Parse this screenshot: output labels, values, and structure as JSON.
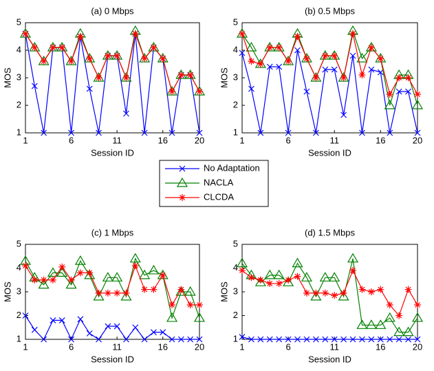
{
  "legend": [
    "No Adaptation",
    "NACLA",
    "CLCDA"
  ],
  "chart_data": [
    {
      "type": "line",
      "title": "(a) 0 Mbps",
      "xlabel": "Session ID",
      "ylabel": "MOS",
      "x": [
        1,
        2,
        3,
        4,
        5,
        6,
        7,
        8,
        9,
        10,
        11,
        12,
        13,
        14,
        15,
        16,
        17,
        18,
        19,
        20
      ],
      "xlim": [
        1,
        20
      ],
      "ylim": [
        1,
        5
      ],
      "xticks": [
        1,
        6,
        11,
        16,
        20
      ],
      "yticks": [
        1,
        2,
        3,
        4,
        5
      ],
      "series": [
        {
          "color": "#0000ff",
          "marker": "x",
          "values": [
            4.6,
            2.7,
            1.0,
            4.1,
            4.1,
            1.0,
            4.5,
            2.6,
            1.0,
            3.8,
            3.8,
            1.7,
            4.6,
            1.0,
            4.1,
            3.7,
            1.0,
            3.1,
            3.1,
            1.0
          ]
        },
        {
          "color": "#008000",
          "marker": "triangle",
          "values": [
            4.6,
            4.1,
            3.6,
            4.1,
            4.1,
            3.6,
            4.6,
            3.7,
            3.0,
            3.8,
            3.8,
            3.0,
            4.7,
            3.7,
            4.1,
            3.7,
            2.5,
            3.1,
            3.1,
            2.5
          ]
        },
        {
          "color": "#ff0000",
          "marker": "asterisk",
          "values": [
            4.6,
            4.1,
            3.6,
            4.1,
            4.1,
            3.6,
            4.5,
            3.7,
            3.0,
            3.8,
            3.8,
            3.0,
            4.6,
            3.7,
            4.1,
            3.7,
            2.5,
            3.1,
            3.1,
            2.5
          ]
        }
      ]
    },
    {
      "type": "line",
      "title": "(b) 0.5 Mbps",
      "xlabel": "Session ID",
      "ylabel": "MOS",
      "x": [
        1,
        2,
        3,
        4,
        5,
        6,
        7,
        8,
        9,
        10,
        11,
        12,
        13,
        14,
        15,
        16,
        17,
        18,
        19,
        20
      ],
      "xlim": [
        1,
        20
      ],
      "ylim": [
        1,
        5
      ],
      "xticks": [
        1,
        6,
        11,
        16,
        20
      ],
      "yticks": [
        1,
        2,
        3,
        4,
        5
      ],
      "series": [
        {
          "color": "#0000ff",
          "marker": "x",
          "values": [
            3.9,
            2.6,
            1.0,
            3.4,
            3.4,
            1.0,
            4.0,
            2.5,
            1.0,
            3.3,
            3.3,
            1.65,
            3.8,
            1.0,
            3.3,
            3.2,
            1.0,
            2.5,
            2.5,
            1.0
          ]
        },
        {
          "color": "#008000",
          "marker": "triangle",
          "values": [
            4.6,
            4.1,
            3.5,
            4.1,
            4.1,
            3.6,
            4.6,
            3.7,
            3.0,
            3.8,
            3.8,
            3.0,
            4.7,
            3.7,
            4.1,
            3.7,
            2.0,
            3.1,
            3.1,
            2.0
          ]
        },
        {
          "color": "#ff0000",
          "marker": "asterisk",
          "values": [
            4.6,
            3.6,
            3.5,
            4.1,
            4.1,
            3.6,
            4.5,
            3.7,
            3.0,
            3.8,
            3.8,
            3.0,
            4.6,
            3.1,
            4.1,
            3.7,
            2.4,
            3.0,
            3.0,
            2.4
          ]
        }
      ]
    },
    {
      "type": "line",
      "title": "(c) 1 Mbps",
      "xlabel": "Session ID",
      "ylabel": "MOS",
      "x": [
        1,
        2,
        3,
        4,
        5,
        6,
        7,
        8,
        9,
        10,
        11,
        12,
        13,
        14,
        15,
        16,
        17,
        18,
        19,
        20
      ],
      "xlim": [
        1,
        20
      ],
      "ylim": [
        1,
        5
      ],
      "xticks": [
        1,
        6,
        11,
        16,
        20
      ],
      "yticks": [
        1,
        2,
        3,
        4,
        5
      ],
      "series": [
        {
          "color": "#0000ff",
          "marker": "x",
          "values": [
            2.0,
            1.4,
            1.0,
            1.8,
            1.8,
            1.0,
            1.85,
            1.25,
            1.0,
            1.55,
            1.55,
            1.0,
            1.5,
            1.0,
            1.3,
            1.3,
            1.0,
            1.0,
            1.0,
            1.0
          ]
        },
        {
          "color": "#008000",
          "marker": "triangle",
          "values": [
            4.3,
            3.6,
            3.3,
            3.8,
            3.8,
            3.3,
            4.3,
            3.7,
            2.8,
            3.6,
            3.6,
            2.8,
            4.4,
            3.7,
            3.9,
            3.7,
            1.9,
            3.0,
            3.0,
            1.9
          ]
        },
        {
          "color": "#ff0000",
          "marker": "asterisk",
          "values": [
            4.1,
            3.5,
            3.5,
            3.5,
            4.05,
            3.5,
            3.8,
            3.8,
            2.95,
            2.95,
            2.95,
            2.95,
            4.1,
            3.1,
            3.1,
            3.7,
            2.45,
            3.1,
            2.45,
            2.45
          ]
        }
      ]
    },
    {
      "type": "line",
      "title": "(d) 1.5 Mbps",
      "xlabel": "Session ID",
      "ylabel": "MOS",
      "x": [
        1,
        2,
        3,
        4,
        5,
        6,
        7,
        8,
        9,
        10,
        11,
        12,
        13,
        14,
        15,
        16,
        17,
        18,
        19,
        20
      ],
      "xlim": [
        1,
        20
      ],
      "ylim": [
        1,
        5
      ],
      "xticks": [
        1,
        6,
        11,
        16,
        20
      ],
      "yticks": [
        1,
        2,
        3,
        4,
        5
      ],
      "series": [
        {
          "color": "#0000ff",
          "marker": "x",
          "values": [
            1.1,
            1.0,
            1.0,
            1.0,
            1.0,
            1.0,
            1.0,
            1.0,
            1.0,
            1.0,
            1.0,
            1.0,
            1.0,
            1.0,
            1.0,
            1.0,
            1.0,
            1.0,
            1.0,
            1.0
          ]
        },
        {
          "color": "#008000",
          "marker": "triangle",
          "values": [
            4.2,
            3.7,
            3.4,
            3.7,
            3.7,
            3.4,
            4.2,
            3.6,
            2.8,
            3.6,
            3.6,
            2.8,
            4.4,
            1.6,
            1.6,
            1.6,
            1.9,
            1.3,
            1.3,
            1.9
          ]
        },
        {
          "color": "#ff0000",
          "marker": "asterisk",
          "values": [
            3.9,
            3.6,
            3.5,
            3.35,
            3.35,
            3.5,
            3.65,
            2.95,
            2.95,
            2.95,
            2.85,
            2.95,
            3.9,
            3.1,
            3.0,
            3.1,
            2.45,
            2.0,
            3.1,
            2.45
          ]
        }
      ]
    }
  ]
}
